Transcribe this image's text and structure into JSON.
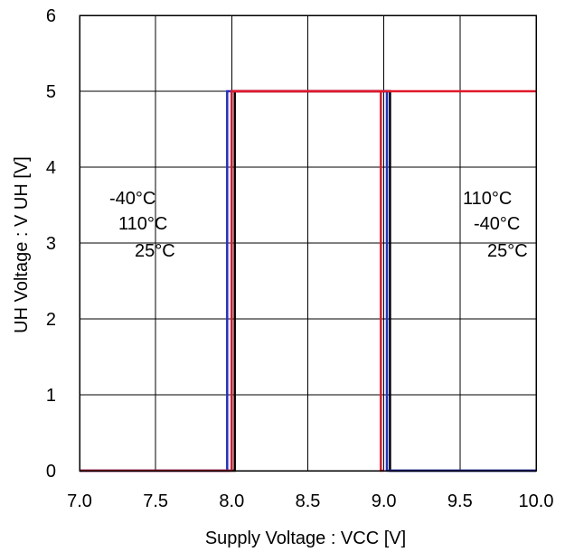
{
  "chart_data": {
    "type": "line",
    "xlabel": "Supply Voltage : VCC [V]",
    "ylabel": "UH Voltage : V UH [V]",
    "xlim": [
      7.0,
      10.0
    ],
    "ylim": [
      0,
      6
    ],
    "x_ticks": [
      "7.0",
      "7.5",
      "8.0",
      "8.5",
      "9.0",
      "9.5",
      "10.0"
    ],
    "y_ticks": [
      "0",
      "1",
      "2",
      "3",
      "4",
      "5",
      "6"
    ],
    "grid": true,
    "series": [
      {
        "color": "#000000",
        "x": [
          7.0,
          8.02,
          8.02,
          9.04,
          9.04,
          10.0
        ],
        "y": [
          0,
          0,
          5,
          5,
          0,
          0
        ]
      },
      {
        "color": "#1f2fd0",
        "x": [
          7.0,
          7.97,
          7.97,
          9.02,
          9.02,
          10.0
        ],
        "y": [
          0,
          0,
          5,
          5,
          0,
          0
        ]
      },
      {
        "color": "#e0182a",
        "x": [
          7.0,
          8.0,
          8.0,
          10.0
        ],
        "y": [
          0,
          0,
          5,
          5
        ]
      },
      {
        "color": "#e0182a",
        "x": [
          8.0,
          8.0,
          8.98,
          8.98,
          9.0
        ],
        "y": [
          0,
          5,
          5,
          0,
          0
        ]
      }
    ],
    "annotations_left": [
      "-40°C",
      "110°C",
      "25°C"
    ],
    "annotations_right": [
      "110°C",
      "-40°C",
      "25°C"
    ]
  }
}
